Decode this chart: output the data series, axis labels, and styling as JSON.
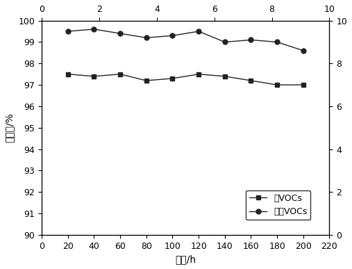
{
  "time": [
    20,
    40,
    60,
    80,
    100,
    120,
    140,
    160,
    180,
    200
  ],
  "total_vocs": [
    97.5,
    97.4,
    97.5,
    97.2,
    97.3,
    97.5,
    97.4,
    97.2,
    97.0,
    97.0
  ],
  "chlorine_vocs": [
    99.5,
    99.6,
    99.4,
    99.2,
    99.3,
    99.5,
    99.0,
    99.1,
    99.0,
    98.6
  ],
  "xlim": [
    0,
    220
  ],
  "ylim": [
    90,
    100
  ],
  "ylim_right": [
    0,
    10
  ],
  "xlabel": "时间/h",
  "ylabel": "转化率/%",
  "legend_total": "总VOCs",
  "legend_chlorine": "含氯VOCs",
  "line_color": "#222222",
  "marker_square": "s",
  "marker_circle": "o",
  "xticks": [
    0,
    20,
    40,
    60,
    80,
    100,
    120,
    140,
    160,
    180,
    200,
    220
  ],
  "yticks": [
    90,
    91,
    92,
    93,
    94,
    95,
    96,
    97,
    98,
    99,
    100
  ],
  "top_xticks": [
    0,
    2,
    4,
    6,
    8,
    10
  ],
  "right_yticks": [
    0,
    2,
    4,
    6,
    8,
    10
  ],
  "markersize": 5,
  "linewidth": 1.0,
  "font_size": 10,
  "tick_font_size": 9,
  "legend_font_size": 9
}
